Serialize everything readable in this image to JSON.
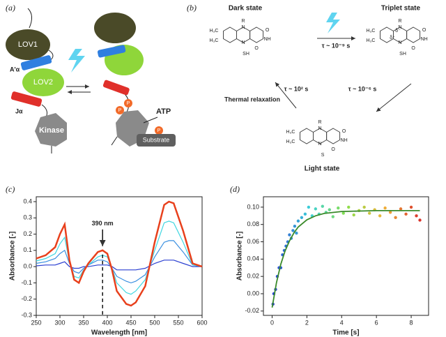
{
  "panel_a": {
    "panel_label": "(a)",
    "lov1": "LOV1",
    "a_alpha": "A'α",
    "lov2": "LOV2",
    "j_alpha": "Jα",
    "kinase": "Kinase",
    "atp": "ATP",
    "substrate": "Substrate",
    "phosphates": [
      "P",
      "P",
      "P"
    ]
  },
  "panel_b": {
    "panel_label": "(b)",
    "dark_state": "Dark state",
    "triplet_state": "Triplet state",
    "light_state": "Light state",
    "tau_isc": "τ ~ 10⁻⁹ s",
    "tau_adduct": "τ ~ 10⁻⁶ s",
    "tau_relax": "τ ~ 10² s",
    "relaxation": "Thermal relaxation",
    "atoms": [
      "H₃C",
      "N",
      "R",
      "O",
      "NH",
      "SH",
      "S",
      "δ⁺",
      "δ⁻"
    ]
  },
  "chart_data": [
    {
      "type": "line",
      "panel_label": "(c)",
      "x_label": "Wavelength [nm]",
      "y_label": "Absorbance [-]",
      "x": [
        250,
        270,
        290,
        300,
        310,
        320,
        330,
        340,
        350,
        360,
        380,
        390,
        400,
        410,
        420,
        440,
        450,
        460,
        480,
        500,
        520,
        530,
        540,
        560,
        580,
        600
      ],
      "series": [
        {
          "color": "#2a3fd1",
          "values": [
            0.005,
            0.01,
            0.01,
            0.02,
            0.03,
            0.0,
            -0.01,
            -0.01,
            0.0,
            0.0,
            0.01,
            0.01,
            0.01,
            0.0,
            -0.02,
            -0.02,
            -0.02,
            -0.02,
            -0.01,
            0.02,
            0.04,
            0.04,
            0.04,
            0.02,
            0.0,
            0.0
          ]
        },
        {
          "color": "#3a8fe0",
          "values": [
            0.02,
            0.03,
            0.05,
            0.08,
            0.1,
            0.02,
            -0.03,
            -0.04,
            -0.01,
            0.01,
            0.04,
            0.04,
            0.03,
            -0.01,
            -0.06,
            -0.09,
            -0.1,
            -0.09,
            -0.05,
            0.06,
            0.15,
            0.16,
            0.16,
            0.09,
            0.01,
            0.0
          ]
        },
        {
          "color": "#3fd6e0",
          "values": [
            0.035,
            0.05,
            0.08,
            0.14,
            0.18,
            0.03,
            -0.06,
            -0.07,
            -0.02,
            0.01,
            0.06,
            0.07,
            0.06,
            -0.01,
            -0.1,
            -0.16,
            -0.17,
            -0.15,
            -0.08,
            0.1,
            0.27,
            0.28,
            0.27,
            0.15,
            0.01,
            0.0
          ]
        },
        {
          "color": "#e8401c",
          "values": [
            0.05,
            0.07,
            0.12,
            0.2,
            0.26,
            0.04,
            -0.08,
            -0.1,
            -0.03,
            0.02,
            0.09,
            0.1,
            0.08,
            -0.02,
            -0.15,
            -0.23,
            -0.24,
            -0.22,
            -0.12,
            0.15,
            0.38,
            0.4,
            0.39,
            0.22,
            0.02,
            0.0
          ]
        }
      ],
      "annotation": {
        "text": "390 nm",
        "x": 390,
        "y": 0.1
      },
      "xlim": [
        250,
        600
      ],
      "xticks": [
        250,
        300,
        350,
        400,
        450,
        500,
        550,
        600
      ],
      "ylim": [
        -0.3,
        0.43
      ],
      "yticks": [
        -0.3,
        -0.2,
        -0.1,
        {
          "value": 0,
          "label": "0.0"
        },
        0.1,
        0.2,
        0.3,
        0.4
      ]
    },
    {
      "type": "scatter",
      "panel_label": "(d)",
      "x_label": "Time [s]",
      "y_label": "Absorbance [-]",
      "colors": [
        "#2a3fd1",
        "#3cd0d8",
        "#8be04c",
        "#f0b43a",
        "#d9322a"
      ],
      "x": [
        0.05,
        0.1,
        0.2,
        0.3,
        0.4,
        0.5,
        0.6,
        0.7,
        0.8,
        0.9,
        1.0,
        1.1,
        1.2,
        1.3,
        1.4,
        1.5,
        1.7,
        1.9,
        2.1,
        2.3,
        2.5,
        2.7,
        2.9,
        3.1,
        3.3,
        3.5,
        3.8,
        4.1,
        4.4,
        4.7,
        5.0,
        5.3,
        5.6,
        5.9,
        6.2,
        6.5,
        6.8,
        7.1,
        7.4,
        7.7,
        8.0,
        8.3,
        8.5
      ],
      "values": [
        -0.012,
        0.0,
        0.005,
        0.02,
        0.03,
        0.03,
        0.045,
        0.05,
        0.055,
        0.06,
        0.068,
        0.064,
        0.073,
        0.078,
        0.07,
        0.084,
        0.088,
        0.092,
        0.1,
        0.09,
        0.098,
        0.092,
        0.101,
        0.094,
        0.097,
        0.089,
        0.099,
        0.093,
        0.1,
        0.091,
        0.096,
        0.1,
        0.093,
        0.097,
        0.09,
        0.099,
        0.094,
        0.088,
        0.098,
        0.092,
        0.1,
        0.09,
        0.085
      ],
      "fit": {
        "color": "#3a8a2a",
        "x": [
          0,
          0.25,
          0.5,
          0.75,
          1,
          1.25,
          1.5,
          2,
          2.5,
          3,
          4,
          5,
          6,
          7,
          8.5
        ],
        "values": [
          -0.016,
          0.0126,
          0.034,
          0.0496,
          0.061,
          0.0702,
          0.077,
          0.0854,
          0.09,
          0.0927,
          0.095,
          0.0955,
          0.096,
          0.096,
          0.096
        ]
      },
      "xlim": [
        -0.5,
        9
      ],
      "xticks": [
        0,
        2,
        4,
        6,
        8
      ],
      "ylim": [
        -0.025,
        0.112
      ],
      "yticks": [
        -0.02,
        {
          "value": 0,
          "label": "0.00"
        },
        0.02,
        0.04,
        0.06,
        0.08,
        {
          "value": 0.1,
          "label": "0.10"
        }
      ]
    }
  ]
}
